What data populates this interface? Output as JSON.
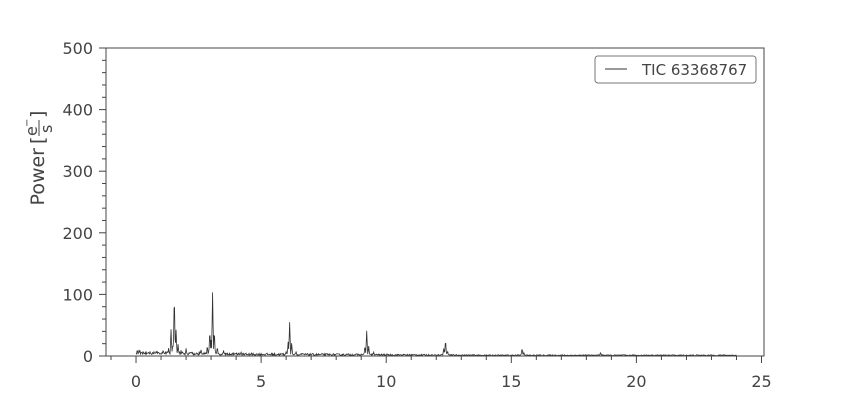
{
  "chart_data": {
    "type": "line",
    "title": "",
    "ylabel": "Power",
    "ylabel_unit_num": "e",
    "ylabel_unit_sup": "−",
    "ylabel_unit_den": "s",
    "xlabel": "",
    "xlim": [
      -1.2,
      25.1
    ],
    "ylim": [
      0,
      500
    ],
    "x_ticks": [
      0,
      5,
      10,
      15,
      20,
      25
    ],
    "y_ticks": [
      0,
      100,
      200,
      300,
      400,
      500
    ],
    "y_minor_step": 20,
    "x_minor_step": 1,
    "grid": false,
    "legend_position": "top-right",
    "series": [
      {
        "name": "TIC 63368767",
        "color": "#333333",
        "x_range": [
          0,
          24
        ],
        "baseline": 2,
        "peaks": [
          {
            "x": 0.05,
            "y": 9
          },
          {
            "x": 0.15,
            "y": 8
          },
          {
            "x": 0.3,
            "y": 6
          },
          {
            "x": 0.5,
            "y": 5
          },
          {
            "x": 1.05,
            "y": 6
          },
          {
            "x": 1.3,
            "y": 12
          },
          {
            "x": 1.4,
            "y": 42
          },
          {
            "x": 1.47,
            "y": 20
          },
          {
            "x": 1.53,
            "y": 104
          },
          {
            "x": 1.6,
            "y": 42
          },
          {
            "x": 1.68,
            "y": 18
          },
          {
            "x": 1.8,
            "y": 8
          },
          {
            "x": 2.0,
            "y": 11
          },
          {
            "x": 2.2,
            "y": 6
          },
          {
            "x": 2.6,
            "y": 9
          },
          {
            "x": 2.85,
            "y": 16
          },
          {
            "x": 2.95,
            "y": 42
          },
          {
            "x": 3.0,
            "y": 25
          },
          {
            "x": 3.06,
            "y": 102
          },
          {
            "x": 3.13,
            "y": 42
          },
          {
            "x": 3.25,
            "y": 15
          },
          {
            "x": 3.5,
            "y": 8
          },
          {
            "x": 4.2,
            "y": 5
          },
          {
            "x": 6.0,
            "y": 7
          },
          {
            "x": 6.08,
            "y": 22
          },
          {
            "x": 6.14,
            "y": 55
          },
          {
            "x": 6.22,
            "y": 20
          },
          {
            "x": 6.4,
            "y": 6
          },
          {
            "x": 9.15,
            "y": 16
          },
          {
            "x": 9.22,
            "y": 40
          },
          {
            "x": 9.3,
            "y": 15
          },
          {
            "x": 9.5,
            "y": 5
          },
          {
            "x": 12.3,
            "y": 12
          },
          {
            "x": 12.37,
            "y": 26
          },
          {
            "x": 12.45,
            "y": 8
          },
          {
            "x": 15.43,
            "y": 12
          },
          {
            "x": 15.5,
            "y": 5
          },
          {
            "x": 18.57,
            "y": 5
          }
        ]
      }
    ]
  }
}
